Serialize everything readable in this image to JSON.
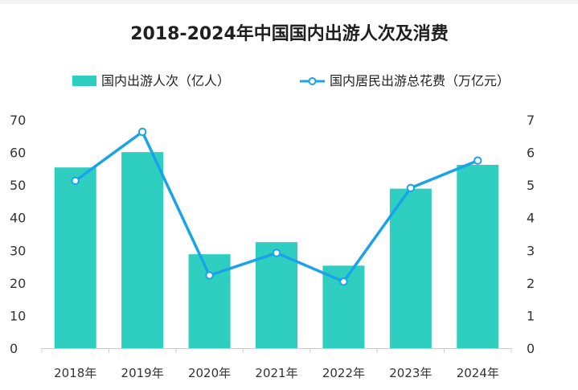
{
  "chart_data": {
    "type": "bar",
    "title": "2018-2024年中国国内出游人次及消费",
    "categories": [
      "2018年",
      "2019年",
      "2020年",
      "2021年",
      "2022年",
      "2023年",
      "2024年"
    ],
    "series": [
      {
        "name": "国内出游人次（亿人）",
        "type": "bar",
        "axis": "left",
        "color": "#2ecfc0",
        "values": [
          55.4,
          60.1,
          28.8,
          32.5,
          25.3,
          48.9,
          56.2
        ]
      },
      {
        "name": "国内居民出游总花费（万亿元）",
        "type": "line",
        "axis": "right",
        "color": "#1aa3e8",
        "values": [
          5.13,
          6.63,
          2.23,
          2.92,
          2.04,
          4.91,
          5.75
        ]
      }
    ],
    "ylim_left": [
      0,
      70
    ],
    "ylim_right": [
      0,
      7
    ],
    "yticks_left": [
      "0",
      "10",
      "20",
      "30",
      "40",
      "50",
      "60",
      "70"
    ],
    "yticks_right": [
      "0",
      "1",
      "2",
      "3",
      "4",
      "5",
      "6",
      "7"
    ],
    "legend_position": "top",
    "grid": false
  }
}
